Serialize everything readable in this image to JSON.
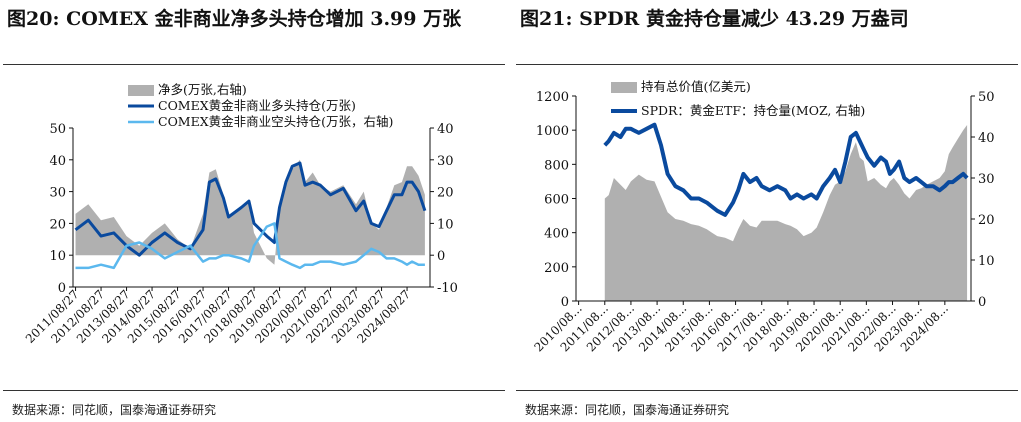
{
  "left": {
    "title": "图20:  COMEX 金非商业净多头持仓增加 3.99 万张",
    "source": "数据来源：同花顺，国泰海通证券研究"
  },
  "right": {
    "title": "图21:  SPDR 黄金持仓量减少 43.29 万盎司",
    "source": "数据来源：同花顺，国泰海通证券研究"
  },
  "chart_data": [
    {
      "type": "line",
      "title": "图20:  COMEX 金非商业净多头持仓增加 3.99 万张",
      "ylim": [
        0,
        50
      ],
      "yticks": [
        "0",
        "10",
        "20",
        "30",
        "40",
        "50"
      ],
      "y2lim": [
        -10,
        40
      ],
      "y2ticks": [
        "-10",
        "0",
        "10",
        "20",
        "30",
        "40"
      ],
      "x_labels": [
        "2011/08/27",
        "2012/08/27",
        "2013/08/27",
        "2014/08/27",
        "2015/08/27",
        "2016/08/27",
        "2017/08/27",
        "2018/08/27",
        "2019/08/27",
        "2020/08/27",
        "2021/08/27",
        "2022/08/27",
        "2023/08/27",
        "2024/08/27"
      ],
      "legend_position": "top-right",
      "colors": {
        "net": "#b0b0b0",
        "long": "#0a4a9e",
        "short": "#5bb8ee"
      },
      "x": [
        2011.0,
        2011.5,
        2012.0,
        2012.5,
        2013.0,
        2013.5,
        2014.0,
        2014.5,
        2015.0,
        2015.5,
        2016.0,
        2016.25,
        2016.5,
        2016.8,
        2017.0,
        2017.5,
        2017.8,
        2018.0,
        2018.5,
        2018.8,
        2019.0,
        2019.25,
        2019.5,
        2019.8,
        2020.0,
        2020.3,
        2020.6,
        2021.0,
        2021.5,
        2022.0,
        2022.3,
        2022.6,
        2022.9,
        2023.2,
        2023.5,
        2023.8,
        2024.0,
        2024.2,
        2024.45,
        2024.7
      ],
      "series": [
        {
          "name": "净多(万张,右轴)",
          "axis": "right",
          "kind": "area",
          "values": [
            13,
            16,
            11,
            12,
            6,
            3,
            7,
            10,
            5,
            2,
            13,
            26,
            27,
            19,
            12,
            15,
            17,
            7,
            -1,
            -3,
            15,
            22,
            27,
            30,
            23,
            26,
            22,
            20,
            22,
            16,
            20,
            10,
            8,
            15,
            22,
            23,
            28,
            28,
            25,
            19
          ]
        },
        {
          "name": "COMEX黄金非商业多头持仓(万张)",
          "axis": "left",
          "kind": "line",
          "values": [
            18,
            21,
            16,
            17,
            13,
            10,
            14,
            17,
            14,
            12,
            18,
            33,
            34,
            28,
            22,
            25,
            27,
            20,
            16,
            14,
            25,
            33,
            38,
            39,
            32,
            33,
            32,
            29,
            31,
            24,
            27,
            20,
            19,
            24,
            29,
            29,
            33,
            33,
            30,
            24
          ]
        },
        {
          "name": "COMEX黄金非商业空头持仓(万张，右轴)",
          "axis": "right",
          "kind": "line",
          "values": [
            -4,
            -4,
            -3,
            -4,
            3,
            4,
            2,
            -1,
            1,
            3,
            -2,
            -1,
            -1,
            0,
            0,
            -1,
            -2,
            3,
            9,
            10,
            -1,
            -2,
            -3,
            -4,
            -3,
            -3,
            -2,
            -2,
            -3,
            -2,
            0,
            2,
            1,
            -1,
            -1,
            -2,
            -3,
            -2,
            -3,
            -3
          ]
        }
      ]
    },
    {
      "type": "line",
      "title": "图21:  SPDR 黄金持仓量减少 43.29 万盎司",
      "ylim": [
        0,
        1200
      ],
      "yticks": [
        "0",
        "200",
        "400",
        "600",
        "800",
        "1000",
        "1200"
      ],
      "y2lim": [
        0,
        50
      ],
      "y2ticks": [
        "0",
        "10",
        "20",
        "30",
        "40",
        "50"
      ],
      "x_labels": [
        "2010/08...",
        "2011/08...",
        "2012/08...",
        "2013/08...",
        "2014/08...",
        "2015/08...",
        "2016/08...",
        "2017/08...",
        "2018/08...",
        "2019/08...",
        "2020/08...",
        "2021/08...",
        "2022/08...",
        "2023/08...",
        "2024/08..."
      ],
      "legend_position": "top-left",
      "colors": {
        "value": "#b0b0b0",
        "holdings": "#0a4a9e"
      },
      "x": [
        2011.0,
        2011.15,
        2011.35,
        2011.6,
        2011.8,
        2012.0,
        2012.3,
        2012.6,
        2012.9,
        2013.15,
        2013.4,
        2013.7,
        2014.0,
        2014.3,
        2014.6,
        2014.9,
        2015.1,
        2015.3,
        2015.6,
        2015.9,
        2016.1,
        2016.3,
        2016.55,
        2016.8,
        2017.0,
        2017.3,
        2017.6,
        2017.9,
        2018.1,
        2018.35,
        2018.6,
        2018.9,
        2019.1,
        2019.35,
        2019.6,
        2019.8,
        2020.0,
        2020.2,
        2020.4,
        2020.6,
        2020.75,
        2020.9,
        2021.05,
        2021.3,
        2021.55,
        2021.75,
        2021.9,
        2022.05,
        2022.25,
        2022.45,
        2022.65,
        2022.9,
        2023.1,
        2023.3,
        2023.55,
        2023.8,
        2024.0,
        2024.15,
        2024.3,
        2024.5,
        2024.7,
        2024.85
      ],
      "series": [
        {
          "name": "持有总价值(亿美元)",
          "axis": "left",
          "kind": "area",
          "values": [
            600,
            620,
            720,
            680,
            650,
            700,
            740,
            710,
            700,
            610,
            520,
            480,
            470,
            450,
            440,
            420,
            400,
            380,
            370,
            350,
            420,
            480,
            440,
            430,
            470,
            470,
            470,
            450,
            440,
            420,
            380,
            400,
            430,
            520,
            620,
            680,
            700,
            760,
            860,
            930,
            840,
            820,
            700,
            720,
            680,
            660,
            700,
            720,
            680,
            630,
            600,
            650,
            660,
            680,
            700,
            720,
            760,
            860,
            900,
            950,
            1000,
            1030
          ]
        },
        {
          "name": "SPDR：黄金ETF：持仓量(MOZ, 右轴)",
          "axis": "right",
          "kind": "line",
          "values": [
            38,
            39,
            41,
            40,
            42,
            42,
            41,
            42,
            43,
            38,
            31,
            28,
            27,
            25,
            25,
            24,
            23,
            22,
            21,
            24,
            27,
            31,
            29,
            30,
            28,
            27,
            28,
            27,
            25,
            26,
            25,
            26,
            25,
            28,
            30,
            32,
            29,
            34,
            40,
            41,
            39,
            37,
            35,
            33,
            35,
            34,
            31,
            32,
            34,
            30,
            29,
            30,
            29,
            28,
            28,
            27,
            28,
            29,
            29,
            30,
            31,
            30
          ]
        }
      ]
    }
  ]
}
